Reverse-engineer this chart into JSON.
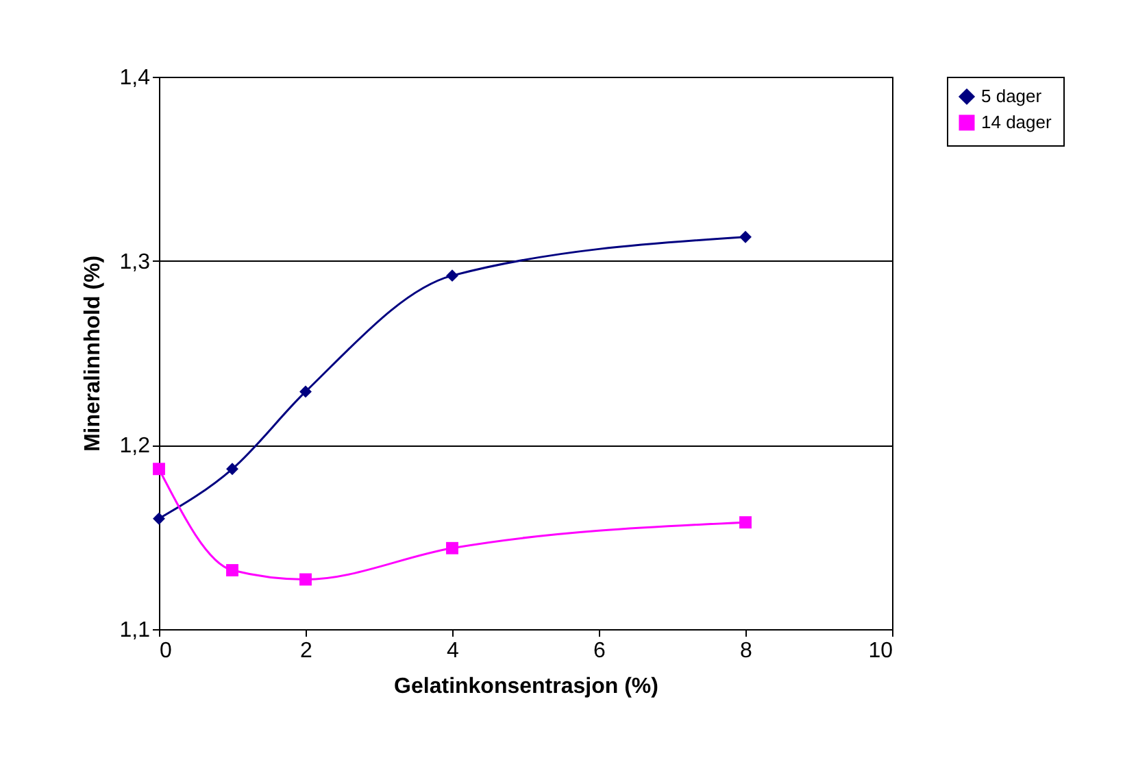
{
  "chart_data": {
    "type": "line",
    "xlabel": "Gelatinkonsentrasjon (%)",
    "ylabel": "Mineralinnhold (%)",
    "xlim": [
      0,
      10
    ],
    "xticks": [
      0,
      2,
      4,
      6,
      8,
      10
    ],
    "ylim": [
      1.1,
      1.4
    ],
    "yticks": [
      {
        "value": 1.1,
        "label": "1,1"
      },
      {
        "value": 1.2,
        "label": "1,2"
      },
      {
        "value": 1.3,
        "label": "1,3"
      },
      {
        "value": 1.4,
        "label": "1,4"
      }
    ],
    "grid": "y",
    "legend": "right",
    "series": [
      {
        "name": "5 dager",
        "color": "#000080",
        "marker": "diamond",
        "x": [
          0,
          1,
          2,
          4,
          8
        ],
        "values": [
          1.16,
          1.187,
          1.229,
          1.292,
          1.313
        ]
      },
      {
        "name": "14 dager",
        "color": "#ff00ff",
        "marker": "square",
        "x": [
          0,
          1,
          2,
          4,
          8
        ],
        "values": [
          1.187,
          1.132,
          1.127,
          1.144,
          1.158
        ]
      }
    ]
  }
}
